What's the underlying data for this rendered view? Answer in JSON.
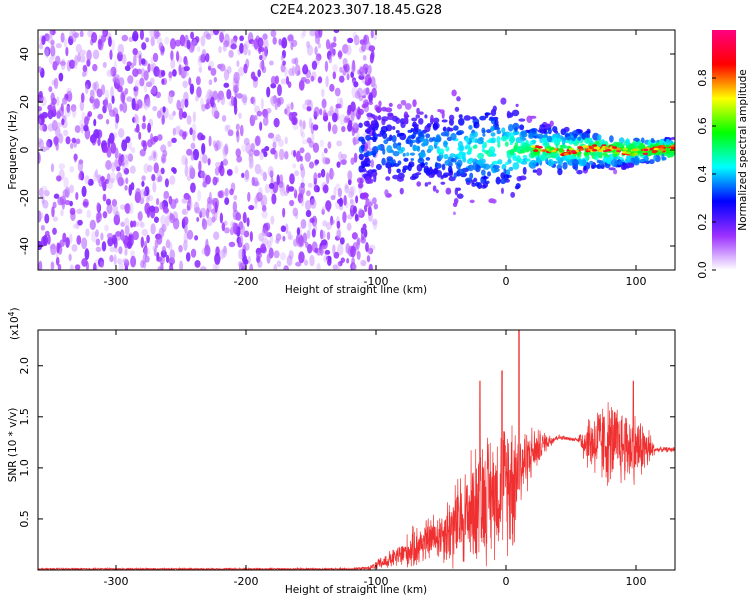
{
  "title": "C2E4.2023.307.18.45.G28",
  "chart_data": [
    {
      "type": "heatmap",
      "name": "spectrogram",
      "xlabel": "Height of straight line (km)",
      "ylabel": "Frequency (Hz)",
      "xlim": [
        -360,
        130
      ],
      "ylim": [
        -50,
        50
      ],
      "xticks": [
        -300,
        -200,
        -100,
        0,
        100
      ],
      "xtick_labels": [
        "-300",
        "-200",
        "-100",
        "0",
        "100"
      ],
      "yticks": [
        -40,
        -20,
        0,
        20,
        40
      ],
      "ytick_labels": [
        "-40",
        "-20",
        "0",
        "20",
        "40"
      ],
      "noise_region_x": [
        -360,
        -100
      ],
      "signal_tone_hz": 0,
      "colorbar": {
        "label": "Normalized spectral amplitude",
        "range": [
          0.0,
          1.0
        ],
        "ticks": [
          0.0,
          0.2,
          0.4,
          0.6,
          0.8
        ],
        "tick_labels": [
          "0.0",
          "0.2",
          "0.4",
          "0.6",
          "0.8"
        ],
        "colormap": [
          "#ffffff",
          "#9b30ff",
          "#0000ff",
          "#00ffff",
          "#00ff00",
          "#ffff00",
          "#ff0000",
          "#ff0080"
        ]
      }
    },
    {
      "type": "line",
      "name": "snr",
      "xlabel": "Height of straight line (km)",
      "ylabel": "SNR (10 * v/v)",
      "y_multiplier_label": "(x10^4)",
      "y_multiplier_base": "(x10",
      "y_multiplier_exp": "4",
      "y_multiplier_close": ")",
      "xlim": [
        -360,
        130
      ],
      "ylim": [
        0,
        2.35
      ],
      "xticks": [
        -300,
        -200,
        -100,
        0,
        100
      ],
      "xtick_labels": [
        "-300",
        "-200",
        "-100",
        "0",
        "100"
      ],
      "yticks": [
        0.5,
        1.0,
        1.5,
        2.0
      ],
      "ytick_labels": [
        "0.5",
        "1.0",
        "1.5",
        "2.0"
      ],
      "color": "#f03030",
      "envelope": {
        "x": [
          -360,
          -120,
          -105,
          -95,
          -85,
          -70,
          -60,
          -50,
          -40,
          -30,
          -20,
          -10,
          0,
          5,
          10,
          20,
          30,
          40,
          50,
          55,
          60,
          70,
          80,
          90,
          100,
          110,
          115,
          130
        ],
        "mean": [
          0.01,
          0.01,
          0.02,
          0.07,
          0.12,
          0.22,
          0.3,
          0.35,
          0.42,
          0.55,
          0.7,
          0.75,
          0.85,
          0.9,
          1.0,
          1.15,
          1.25,
          1.3,
          1.28,
          1.28,
          1.26,
          1.25,
          1.24,
          1.22,
          1.2,
          1.18,
          1.18,
          1.18
        ],
        "spread": [
          0.01,
          0.01,
          0.02,
          0.08,
          0.12,
          0.25,
          0.25,
          0.3,
          0.5,
          0.6,
          0.75,
          0.7,
          0.75,
          0.9,
          0.5,
          0.3,
          0.12,
          0.03,
          0.02,
          0.02,
          0.25,
          0.45,
          0.5,
          0.45,
          0.4,
          0.25,
          0.03,
          0.03
        ]
      },
      "peaks": [
        {
          "x": 10,
          "y": 2.35
        },
        {
          "x": -3,
          "y": 1.95
        },
        {
          "x": -20,
          "y": 1.85
        },
        {
          "x": 98,
          "y": 1.85
        }
      ]
    }
  ]
}
